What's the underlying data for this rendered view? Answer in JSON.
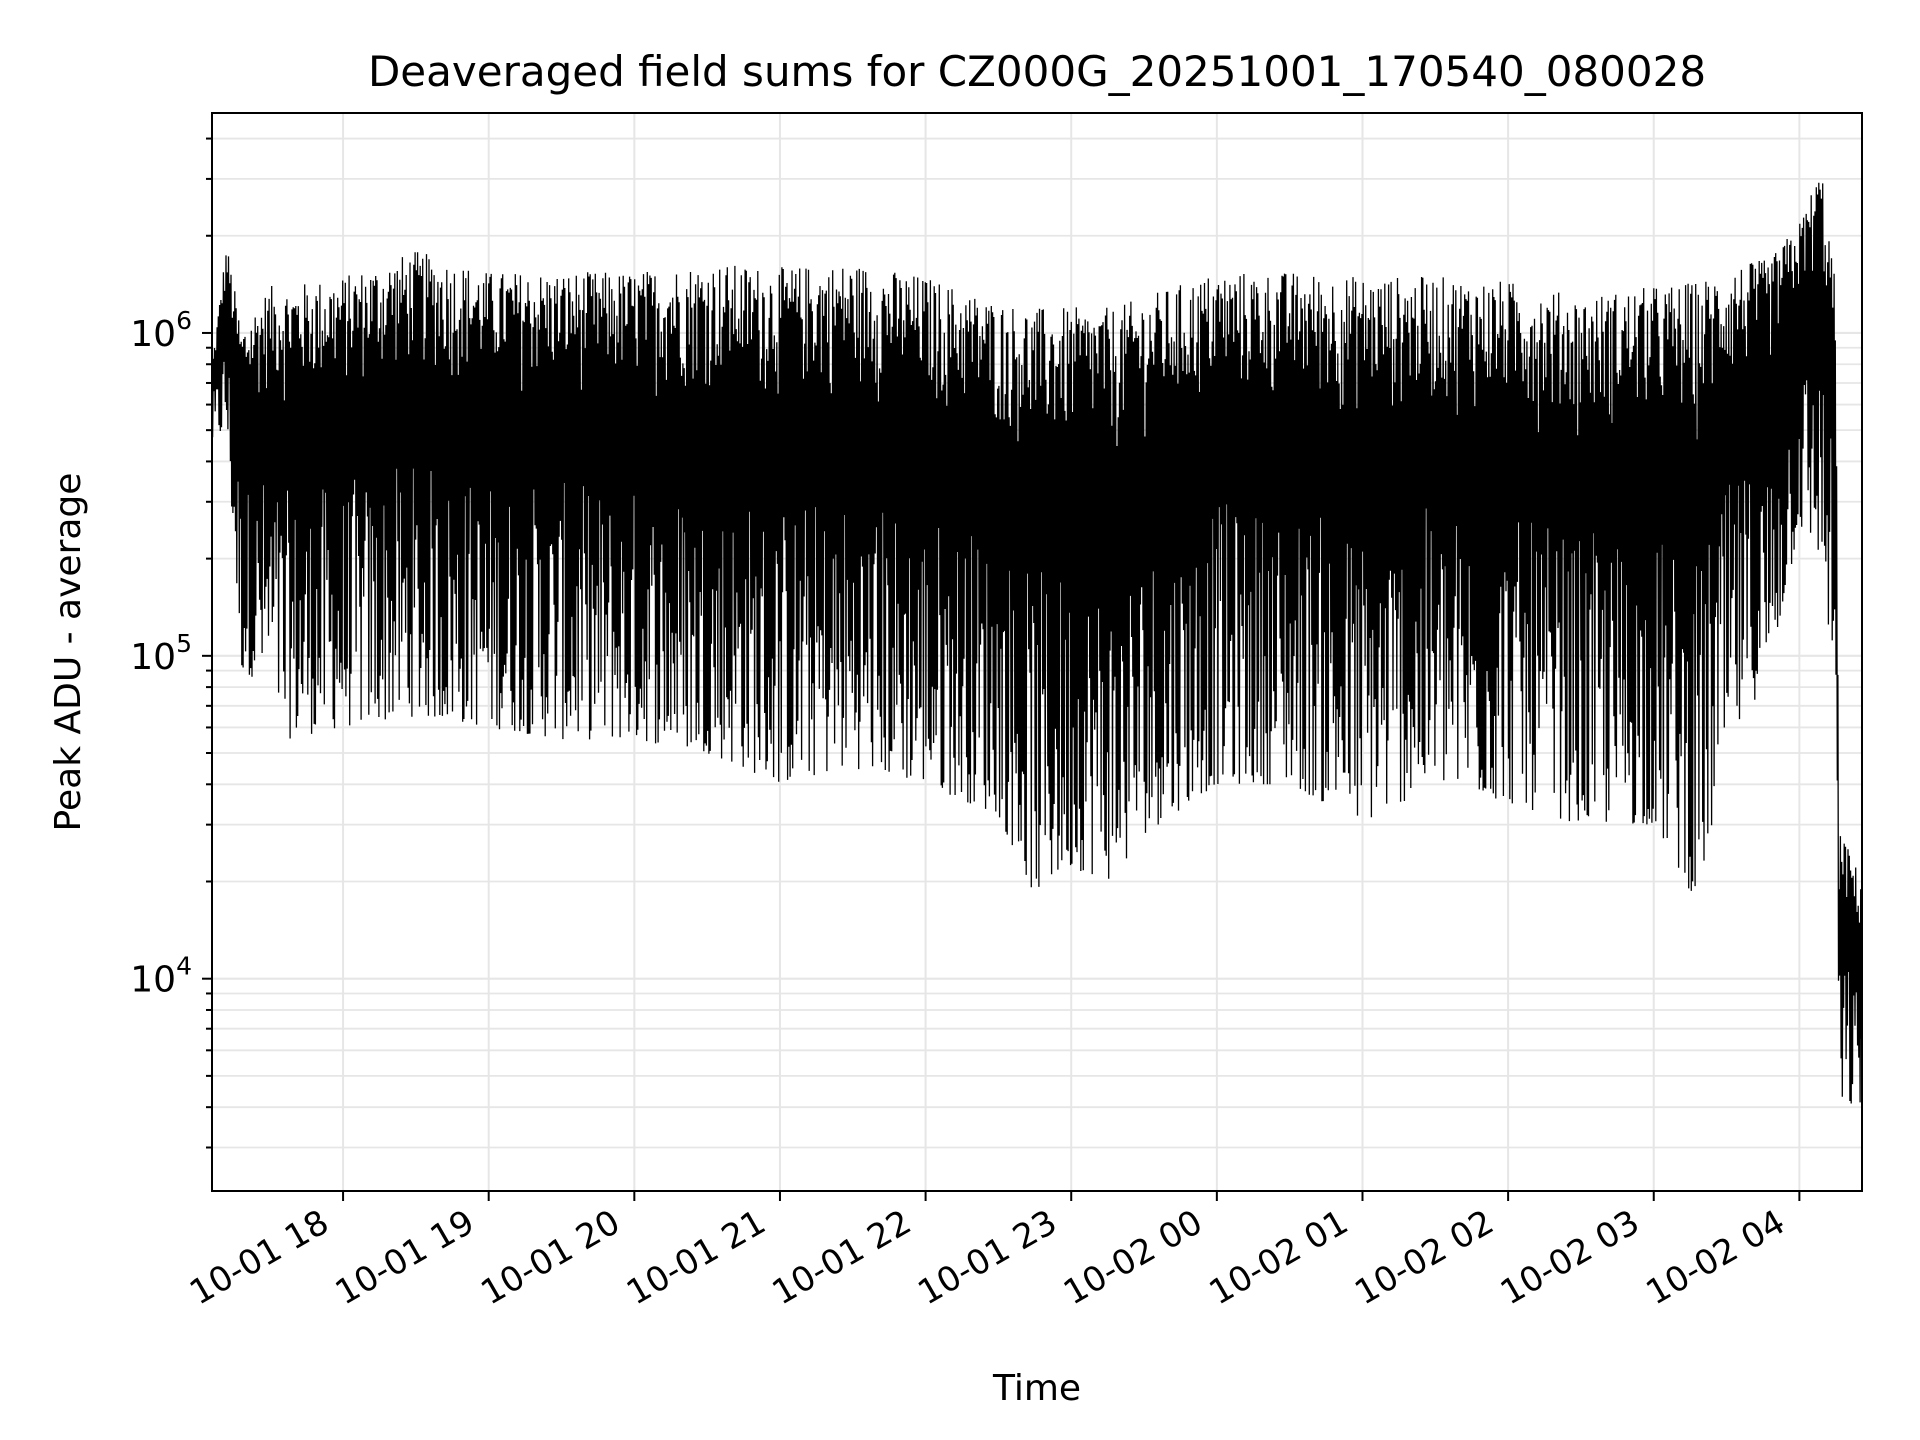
{
  "chart_data": {
    "type": "line",
    "title": "Deaveraged field sums for CZ000G_20251001_170540_080028",
    "xlabel": "Time",
    "ylabel": "Peak ADU - average",
    "yscale": "log",
    "ylim": [
      2200,
      4800000
    ],
    "xlim_hours": [
      17.1,
      28.43
    ],
    "grid": true,
    "line_color": "#000000",
    "grid_color": "#e6e6e6",
    "xticks": [
      {
        "hour": 18,
        "label": "10-01 18"
      },
      {
        "hour": 19,
        "label": "10-01 19"
      },
      {
        "hour": 20,
        "label": "10-01 20"
      },
      {
        "hour": 21,
        "label": "10-01 21"
      },
      {
        "hour": 22,
        "label": "10-01 22"
      },
      {
        "hour": 23,
        "label": "10-01 23"
      },
      {
        "hour": 24,
        "label": "10-02 00"
      },
      {
        "hour": 25,
        "label": "10-02 01"
      },
      {
        "hour": 26,
        "label": "10-02 02"
      },
      {
        "hour": 27,
        "label": "10-02 03"
      },
      {
        "hour": 28,
        "label": "10-02 04"
      }
    ],
    "yticks": [
      {
        "value": 10000,
        "base": "10",
        "exp": "4"
      },
      {
        "value": 100000,
        "base": "10",
        "exp": "5"
      },
      {
        "value": 1000000,
        "base": "10",
        "exp": "6"
      }
    ],
    "series": [
      {
        "name": "field sums",
        "envelope": [
          {
            "hour": 17.1,
            "upper": 800000,
            "lower": 450000
          },
          {
            "hour": 17.2,
            "upper": 1900000,
            "lower": 500000
          },
          {
            "hour": 17.3,
            "upper": 1050000,
            "lower": 90000
          },
          {
            "hour": 17.5,
            "upper": 1400000,
            "lower": 80000
          },
          {
            "hour": 17.6,
            "upper": 1400000,
            "lower": 55000
          },
          {
            "hour": 18.0,
            "upper": 1500000,
            "lower": 60000
          },
          {
            "hour": 18.5,
            "upper": 1800000,
            "lower": 65000
          },
          {
            "hour": 19.0,
            "upper": 1550000,
            "lower": 60000
          },
          {
            "hour": 19.5,
            "upper": 1550000,
            "lower": 55000
          },
          {
            "hour": 20.0,
            "upper": 1550000,
            "lower": 55000
          },
          {
            "hour": 20.5,
            "upper": 1650000,
            "lower": 50000
          },
          {
            "hour": 21.0,
            "upper": 1600000,
            "lower": 40000
          },
          {
            "hour": 21.5,
            "upper": 1650000,
            "lower": 45000
          },
          {
            "hour": 22.0,
            "upper": 1500000,
            "lower": 40000
          },
          {
            "hour": 22.5,
            "upper": 1250000,
            "lower": 32000
          },
          {
            "hour": 22.75,
            "upper": 1200000,
            "lower": 18000
          },
          {
            "hour": 23.0,
            "upper": 1200000,
            "lower": 22000
          },
          {
            "hour": 23.3,
            "upper": 1200000,
            "lower": 20000
          },
          {
            "hour": 23.5,
            "upper": 1300000,
            "lower": 28000
          },
          {
            "hour": 24.0,
            "upper": 1550000,
            "lower": 40000
          },
          {
            "hour": 24.5,
            "upper": 1550000,
            "lower": 40000
          },
          {
            "hour": 25.0,
            "upper": 1500000,
            "lower": 30000
          },
          {
            "hour": 25.5,
            "upper": 1500000,
            "lower": 40000
          },
          {
            "hour": 26.0,
            "upper": 1450000,
            "lower": 35000
          },
          {
            "hour": 26.5,
            "upper": 1300000,
            "lower": 30000
          },
          {
            "hour": 27.0,
            "upper": 1400000,
            "lower": 30000
          },
          {
            "hour": 27.3,
            "upper": 1450000,
            "lower": 17000
          },
          {
            "hour": 27.5,
            "upper": 1600000,
            "lower": 50000
          },
          {
            "hour": 27.8,
            "upper": 1700000,
            "lower": 90000
          },
          {
            "hour": 28.0,
            "upper": 2200000,
            "lower": 250000
          },
          {
            "hour": 28.15,
            "upper": 3300000,
            "lower": 200000
          },
          {
            "hour": 28.25,
            "upper": 1400000,
            "lower": 70000
          },
          {
            "hour": 28.27,
            "upper": 30000,
            "lower": 4000
          },
          {
            "hour": 28.43,
            "upper": 20000,
            "lower": 4000
          }
        ]
      }
    ]
  }
}
